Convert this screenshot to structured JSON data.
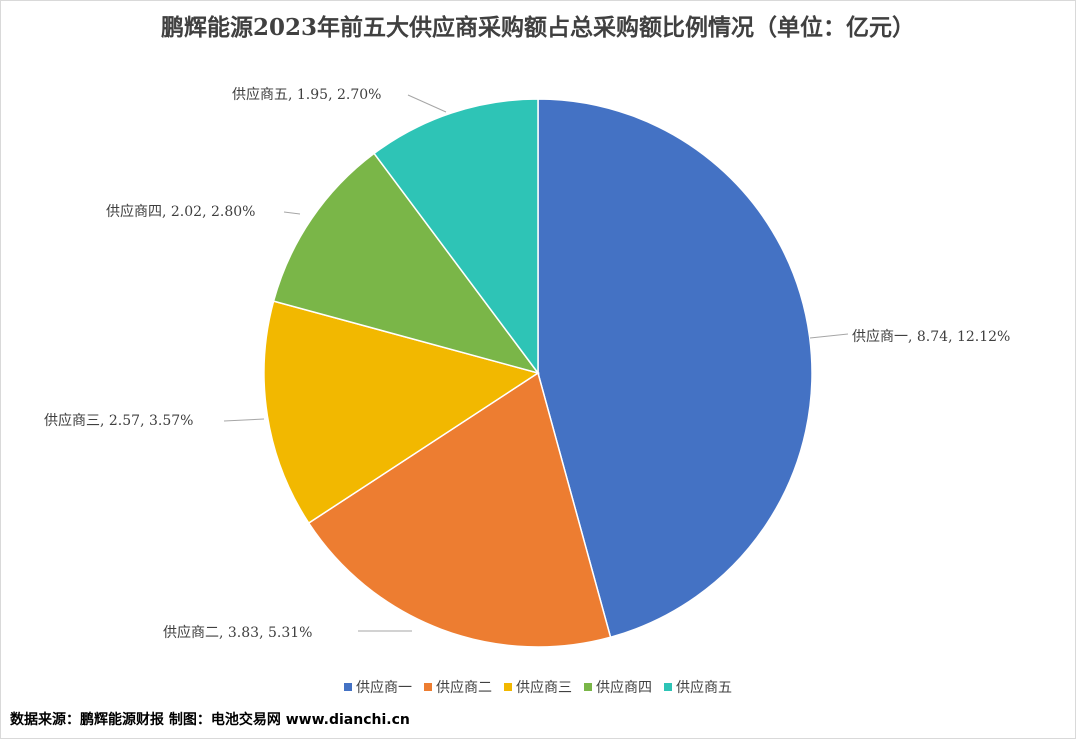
{
  "chart_data": {
    "type": "pie",
    "title": "鹏辉能源2023年前五大供应商采购额占总采购额比例情况（单位：亿元）",
    "slices": [
      {
        "name": "供应商一",
        "value": 8.74,
        "percent": "12.12%",
        "color": "#4472C4",
        "label": "供应商一, 8.74, 12.12%"
      },
      {
        "name": "供应商二",
        "value": 3.83,
        "percent": "5.31%",
        "color": "#ED7D31",
        "label": "供应商二, 3.83, 5.31%"
      },
      {
        "name": "供应商三",
        "value": 2.57,
        "percent": "3.57%",
        "color": "#F2B800",
        "label": "供应商三, 2.57, 3.57%"
      },
      {
        "name": "供应商四",
        "value": 2.02,
        "percent": "2.80%",
        "color": "#7AB648",
        "label": "供应商四, 2.02, 2.80%"
      },
      {
        "name": "供应商五",
        "value": 1.95,
        "percent": "2.70%",
        "color": "#2EC4B6",
        "label": "供应商五, 1.95, 2.70%"
      }
    ],
    "legend_position": "bottom"
  },
  "source": "数据来源：鹏辉能源财报  制图：电池交易网 www.dianchi.cn"
}
